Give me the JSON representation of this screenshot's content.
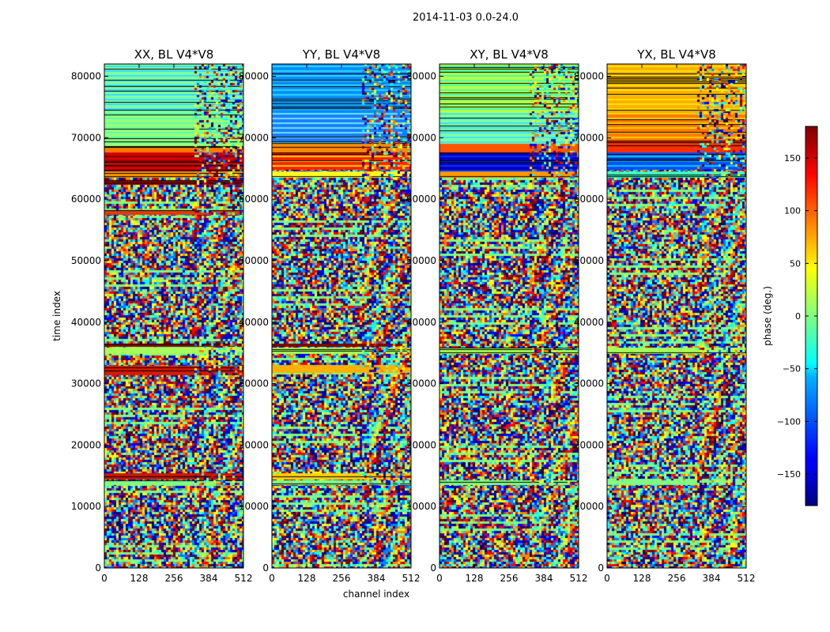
{
  "chart_data": {
    "type": "heatmap",
    "suptitle": "2014-11-03 0.0-24.0",
    "xlabel": "channel index",
    "ylabel": "time index",
    "colorbar_label": "phase (deg.)",
    "colormap": "jet",
    "clim": [
      -180,
      180
    ],
    "colorbar_ticks": [
      "150",
      "100",
      "50",
      "0",
      "−50",
      "−100",
      "−150"
    ],
    "colorbar_tick_values": [
      150,
      100,
      50,
      0,
      -50,
      -100,
      -150
    ],
    "xlim": [
      0,
      512
    ],
    "x_ticks": [
      "0",
      "128",
      "256",
      "384",
      "512"
    ],
    "x_tick_values": [
      0,
      128,
      256,
      384,
      512
    ],
    "ylim": [
      0,
      82000
    ],
    "y_ticks": [
      "0",
      "10000",
      "20000",
      "30000",
      "40000",
      "50000",
      "60000",
      "70000",
      "80000"
    ],
    "y_tick_values": [
      0,
      10000,
      20000,
      30000,
      40000,
      50000,
      60000,
      70000,
      80000
    ],
    "noise_color_stops": [
      "#00007f",
      "#0000ff",
      "#0080ff",
      "#00ffff",
      "#80ff80",
      "#ffff00",
      "#ff8000",
      "#ff0000",
      "#7f0000"
    ],
    "panels": [
      {
        "title": "XX, BL V4*V8",
        "bands": [
          {
            "t0": 74000,
            "t1": 82000,
            "color": "#7dffa0",
            "alt": "#38d9ff"
          },
          {
            "t0": 68500,
            "t1": 74000,
            "color": "#98ff7a",
            "alt": "#5cffaa"
          },
          {
            "t0": 67500,
            "t1": 68500,
            "color": "#ff7a00"
          },
          {
            "t0": 64500,
            "t1": 67500,
            "color": "#d40000",
            "alt": "#7f0000"
          },
          {
            "t0": 63500,
            "t1": 64500,
            "color": "#ff9a00"
          },
          {
            "t0": 62500,
            "t1": 63000,
            "color": "#cc0000"
          },
          {
            "t0": 57500,
            "t1": 58200,
            "color": "#e23b00"
          },
          {
            "t0": 36000,
            "t1": 36400,
            "color": "#7f0000"
          },
          {
            "t0": 35000,
            "t1": 35800,
            "color": "#a6ff5a"
          },
          {
            "t0": 31500,
            "t1": 32800,
            "color": "#d61a00"
          },
          {
            "t0": 14500,
            "t1": 15300,
            "color": "#c81800"
          },
          {
            "t0": 13500,
            "t1": 14200,
            "color": "#80ff80"
          }
        ]
      },
      {
        "title": "YY, BL V4*V8",
        "bands": [
          {
            "t0": 74000,
            "t1": 82000,
            "color": "#0a8cff",
            "alt": "#25d8ff"
          },
          {
            "t0": 69000,
            "t1": 74000,
            "color": "#1e7bff",
            "alt": "#60e9ff"
          },
          {
            "t0": 67500,
            "t1": 69000,
            "color": "#ff8a00"
          },
          {
            "t0": 64800,
            "t1": 67500,
            "color": "#ff2200",
            "alt": "#ffd000"
          },
          {
            "t0": 63500,
            "t1": 64500,
            "color": "#ffff20"
          },
          {
            "t0": 36000,
            "t1": 36400,
            "color": "#7f0000"
          },
          {
            "t0": 35000,
            "t1": 35800,
            "color": "#a6ff5a"
          },
          {
            "t0": 32000,
            "t1": 33000,
            "color": "#ffb000"
          },
          {
            "t0": 14500,
            "t1": 15300,
            "color": "#ffd000"
          },
          {
            "t0": 13500,
            "t1": 14200,
            "color": "#80ff80"
          }
        ]
      },
      {
        "title": "XY, BL V4*V8",
        "bands": [
          {
            "t0": 74000,
            "t1": 82000,
            "color": "#b8ff40",
            "alt": "#40ffb8"
          },
          {
            "t0": 69000,
            "t1": 74000,
            "color": "#7dffa0",
            "alt": "#40e0ff"
          },
          {
            "t0": 67500,
            "t1": 69000,
            "color": "#ff5500"
          },
          {
            "t0": 64500,
            "t1": 67500,
            "color": "#0000c0",
            "alt": "#0030ff"
          },
          {
            "t0": 63500,
            "t1": 64500,
            "color": "#ff9a00"
          },
          {
            "t0": 35000,
            "t1": 35800,
            "color": "#a6ff5a"
          },
          {
            "t0": 13500,
            "t1": 14200,
            "color": "#80ff80"
          }
        ]
      },
      {
        "title": "YX, BL V4*V8",
        "bands": [
          {
            "t0": 74000,
            "t1": 82000,
            "color": "#ffb000",
            "alt": "#ffe000"
          },
          {
            "t0": 69500,
            "t1": 74000,
            "color": "#ff7a00",
            "alt": "#ffd000"
          },
          {
            "t0": 67500,
            "t1": 69500,
            "color": "#ff3000"
          },
          {
            "t0": 64800,
            "t1": 67500,
            "color": "#0050ff",
            "alt": "#00c8ff"
          },
          {
            "t0": 63500,
            "t1": 64500,
            "color": "#40ffc0"
          },
          {
            "t0": 35000,
            "t1": 35800,
            "color": "#a6ff5a"
          },
          {
            "t0": 13500,
            "t1": 14200,
            "color": "#80ff80"
          }
        ]
      }
    ]
  }
}
